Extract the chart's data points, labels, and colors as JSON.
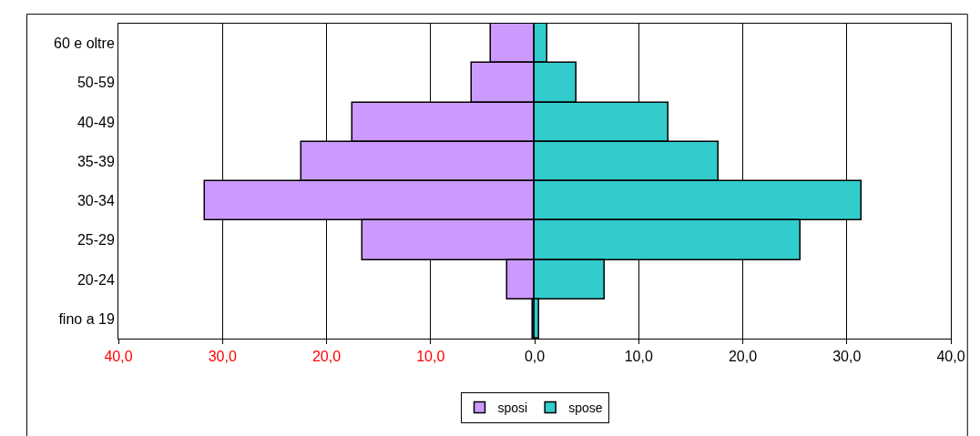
{
  "chart_data": {
    "type": "bar",
    "orientation": "horizontal",
    "categories": [
      "60 e oltre",
      "50-59",
      "40-49",
      "35-39",
      "30-34",
      "25-29",
      "20-24",
      "fino a 19"
    ],
    "series": [
      {
        "name": "sposi",
        "color": "#cc99ff",
        "values": [
          -4.2,
          -6.0,
          -17.5,
          -22.4,
          -31.7,
          -16.5,
          -2.6,
          -0.2
        ]
      },
      {
        "name": "spose",
        "color": "#33cccc",
        "values": [
          1.2,
          4.0,
          12.9,
          17.7,
          31.4,
          25.6,
          6.7,
          0.4
        ]
      }
    ],
    "xlim": [
      -40,
      40
    ],
    "xticks": [
      {
        "value": -40,
        "label": "40,0"
      },
      {
        "value": -30,
        "label": "30,0"
      },
      {
        "value": -20,
        "label": "20,0"
      },
      {
        "value": -10,
        "label": "10,0"
      },
      {
        "value": 0,
        "label": "0,0"
      },
      {
        "value": 10,
        "label": "10,0"
      },
      {
        "value": 20,
        "label": "20,0"
      },
      {
        "value": 30,
        "label": "30,0"
      },
      {
        "value": 40,
        "label": "40,0"
      }
    ],
    "grid": "x",
    "legend": "bottom",
    "stacked": true
  }
}
